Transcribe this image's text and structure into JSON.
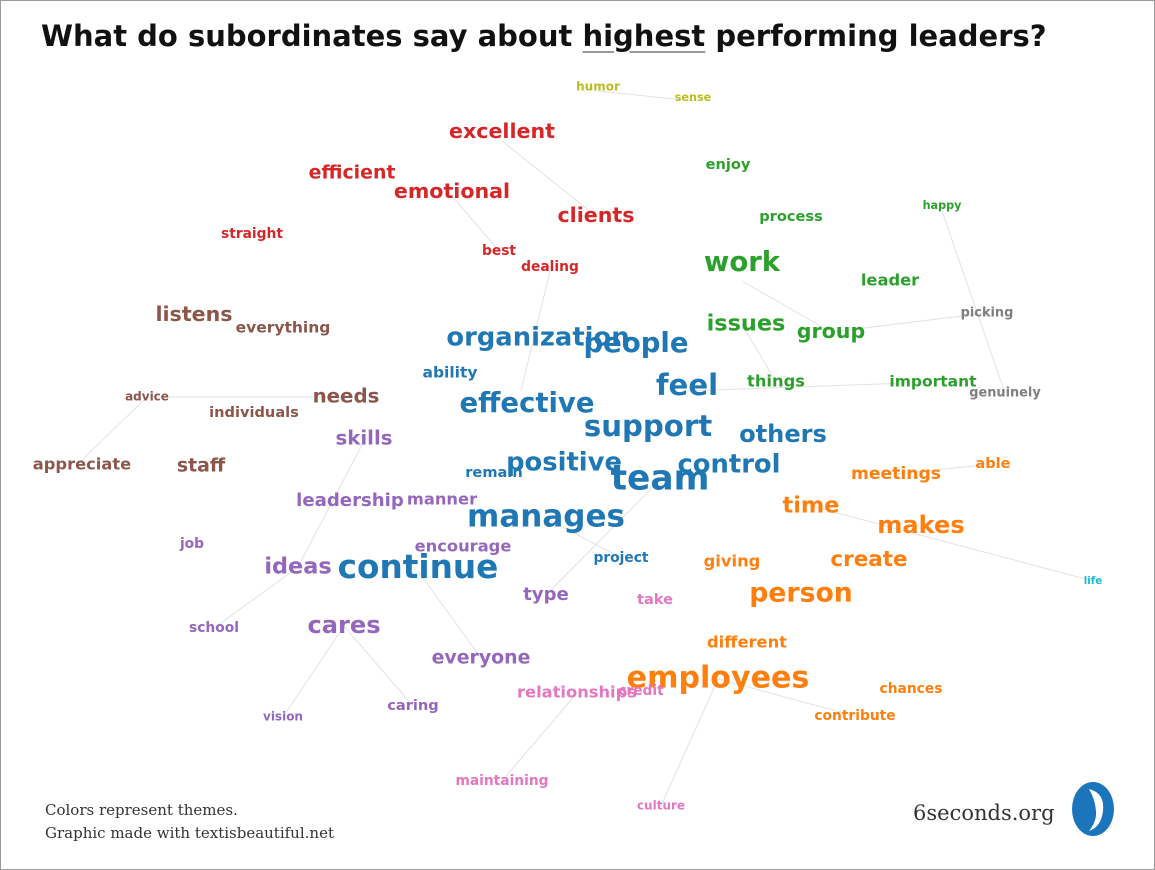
{
  "title": {
    "before": "What do subordinates say about",
    "emphasis": "highest",
    "after": "performing leaders?"
  },
  "words": [
    {
      "text": "humor",
      "color": "#bcbd22"
    },
    {
      "text": "sense",
      "color": "#bcbd22"
    },
    {
      "text": "excellent",
      "color": "#d62728"
    },
    {
      "text": "efficient",
      "color": "#d62728"
    },
    {
      "text": "emotional",
      "color": "#d62728"
    },
    {
      "text": "clients",
      "color": "#d62728"
    },
    {
      "text": "straight",
      "color": "#d62728"
    },
    {
      "text": "best",
      "color": "#d62728"
    },
    {
      "text": "dealing",
      "color": "#d62728"
    },
    {
      "text": "enjoy",
      "color": "#2ca02c"
    },
    {
      "text": "happy",
      "color": "#2ca02c"
    },
    {
      "text": "process",
      "color": "#2ca02c"
    },
    {
      "text": "work",
      "color": "#2ca02c"
    },
    {
      "text": "leader",
      "color": "#2ca02c"
    },
    {
      "text": "picking",
      "color": "#7f7f7f"
    },
    {
      "text": "listens",
      "color": "#8c564b"
    },
    {
      "text": "everything",
      "color": "#8c564b"
    },
    {
      "text": "organization",
      "color": "#1f77b4"
    },
    {
      "text": "people",
      "color": "#1f77b4"
    },
    {
      "text": "issues",
      "color": "#2ca02c"
    },
    {
      "text": "group",
      "color": "#2ca02c"
    },
    {
      "text": "ability",
      "color": "#1f77b4"
    },
    {
      "text": "feel",
      "color": "#1f77b4"
    },
    {
      "text": "things",
      "color": "#2ca02c"
    },
    {
      "text": "important",
      "color": "#2ca02c"
    },
    {
      "text": "genuinely",
      "color": "#7f7f7f"
    },
    {
      "text": "advice",
      "color": "#8c564b"
    },
    {
      "text": "individuals",
      "color": "#8c564b"
    },
    {
      "text": "needs",
      "color": "#8c564b"
    },
    {
      "text": "effective",
      "color": "#1f77b4"
    },
    {
      "text": "skills",
      "color": "#9467bd"
    },
    {
      "text": "support",
      "color": "#1f77b4"
    },
    {
      "text": "others",
      "color": "#1f77b4"
    },
    {
      "text": "appreciate",
      "color": "#8c564b"
    },
    {
      "text": "staff",
      "color": "#8c564b"
    },
    {
      "text": "remain",
      "color": "#1f77b4"
    },
    {
      "text": "positive",
      "color": "#1f77b4"
    },
    {
      "text": "team",
      "color": "#1f77b4"
    },
    {
      "text": "control",
      "color": "#1f77b4"
    },
    {
      "text": "meetings",
      "color": "#ff7f0e"
    },
    {
      "text": "able",
      "color": "#ff7f0e"
    },
    {
      "text": "leadership",
      "color": "#9467bd"
    },
    {
      "text": "manner",
      "color": "#9467bd"
    },
    {
      "text": "time",
      "color": "#ff7f0e"
    },
    {
      "text": "manages",
      "color": "#1f77b4"
    },
    {
      "text": "makes",
      "color": "#ff7f0e"
    },
    {
      "text": "job",
      "color": "#9467bd"
    },
    {
      "text": "encourage",
      "color": "#9467bd"
    },
    {
      "text": "project",
      "color": "#1f77b4"
    },
    {
      "text": "ideas",
      "color": "#9467bd"
    },
    {
      "text": "continue",
      "color": "#1f77b4"
    },
    {
      "text": "giving",
      "color": "#ff7f0e"
    },
    {
      "text": "create",
      "color": "#ff7f0e"
    },
    {
      "text": "life",
      "color": "#17becf"
    },
    {
      "text": "type",
      "color": "#9467bd"
    },
    {
      "text": "take",
      "color": "#e377c2"
    },
    {
      "text": "person",
      "color": "#ff7f0e"
    },
    {
      "text": "school",
      "color": "#9467bd"
    },
    {
      "text": "cares",
      "color": "#9467bd"
    },
    {
      "text": "different",
      "color": "#ff7f0e"
    },
    {
      "text": "everyone",
      "color": "#9467bd"
    },
    {
      "text": "employees",
      "color": "#ff7f0e"
    },
    {
      "text": "credit",
      "color": "#e377c2"
    },
    {
      "text": "relationships",
      "color": "#e377c2"
    },
    {
      "text": "chances",
      "color": "#ff7f0e"
    },
    {
      "text": "vision",
      "color": "#9467bd"
    },
    {
      "text": "caring",
      "color": "#9467bd"
    },
    {
      "text": "contribute",
      "color": "#ff7f0e"
    },
    {
      "text": "maintaining",
      "color": "#e377c2"
    },
    {
      "text": "culture",
      "color": "#e377c2"
    }
  ],
  "footer": [
    "Colors represent themes.",
    "Graphic made with textisbeautiful.net"
  ],
  "site": "6seconds.org"
}
